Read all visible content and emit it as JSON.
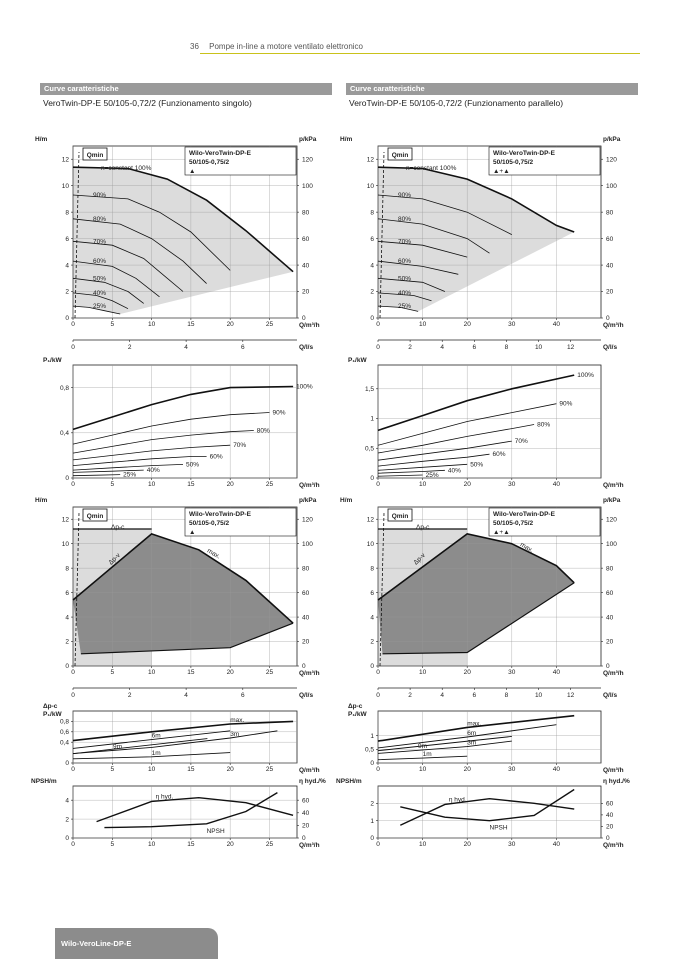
{
  "header": {
    "page_number": "36",
    "title": "Pompe in-line a motore ventilato elettronico"
  },
  "left": {
    "section_label": "Curve caratteristiche",
    "subtitle": "VeroTwin-DP-E 50/105-0,72/2 (Funzionamento singolo)",
    "model_label_1": "Wilo-VeroTwin-DP-E",
    "model_label_2": "50/105-0,75/2",
    "mode_symbol": "▲"
  },
  "right": {
    "section_label": "Curve caratteristiche",
    "subtitle": "VeroTwin-DP-E 50/105-0,72/2 (Funzionamento parallelo)",
    "model_label_1": "Wilo-VeroTwin-DP-E",
    "model_label_2": "50/105-0,75/2",
    "mode_symbol": "▲+▲"
  },
  "footer": {
    "tab_label": "Wilo-VeroLine-DP-E"
  },
  "labels": {
    "qmin": "Qmin",
    "n_constant": "n=constant 100%",
    "h_m": "H/m",
    "p_kpa": "p/kPa",
    "q_m3h": "Q/m³/h",
    "q_ls": "Q/l/s",
    "p1_kw": "P₁/kW",
    "dpc": "Δp-c",
    "dpv": "Δp-v",
    "max": "max.",
    "dpc_p1_1": "Δp-c",
    "dpc_p1_2": "P₁/kW",
    "npsh_m": "NPSH/m",
    "eta_hyd_pct": "η hyd./%",
    "eta_hyd": "η hyd.",
    "npsh": "NPSH",
    "pct_100": "100%",
    "pct_90": "90%",
    "pct_80": "80%",
    "pct_70": "70%",
    "pct_60": "60%",
    "pct_50": "50%",
    "pct_40": "40%",
    "pct_25": "25%",
    "m1": "1m",
    "m3": "3m",
    "m6": "6m",
    "m9": "9m"
  },
  "chart_data": [
    {
      "type": "line",
      "id": "L-HQ",
      "xlabel": "Q/m³/h",
      "ylabel": "H/m",
      "y2label": "p/kPa",
      "xlim": [
        0,
        28.5
      ],
      "ylim": [
        0,
        13
      ],
      "x_ticks": [
        0,
        5,
        10,
        15,
        20,
        25
      ],
      "y_ticks": [
        0,
        2,
        4,
        6,
        8,
        10,
        12
      ],
      "y2_ticks": [
        0,
        20,
        40,
        60,
        80,
        100,
        120
      ],
      "series": [
        {
          "name": "100%",
          "x": [
            0,
            7,
            12,
            17,
            22,
            28
          ],
          "y": [
            11.4,
            11.3,
            10.5,
            8.9,
            6.6,
            3.5
          ]
        },
        {
          "name": "90%",
          "x": [
            0,
            7,
            11,
            15,
            20
          ],
          "y": [
            9.3,
            9.0,
            8.0,
            6.5,
            3.6
          ]
        },
        {
          "name": "80%",
          "x": [
            0,
            6,
            10,
            14,
            17
          ],
          "y": [
            7.5,
            7.1,
            6.0,
            4.3,
            2.6
          ]
        },
        {
          "name": "70%",
          "x": [
            0,
            5,
            9,
            12,
            14
          ],
          "y": [
            5.8,
            5.5,
            4.5,
            3.0,
            2.0
          ]
        },
        {
          "name": "60%",
          "x": [
            0,
            5,
            8,
            11
          ],
          "y": [
            4.3,
            3.9,
            3.0,
            1.6
          ]
        },
        {
          "name": "50%",
          "x": [
            0,
            4,
            7,
            9
          ],
          "y": [
            3.0,
            2.7,
            2.0,
            1.1
          ]
        },
        {
          "name": "40%",
          "x": [
            0,
            3,
            5,
            7
          ],
          "y": [
            1.9,
            1.7,
            1.3,
            0.7
          ]
        },
        {
          "name": "25%",
          "x": [
            0,
            2,
            4,
            6
          ],
          "y": [
            0.9,
            0.8,
            0.55,
            0.3
          ]
        }
      ]
    },
    {
      "type": "line",
      "id": "L-P1",
      "xlabel": "Q/m³/h",
      "ylabel": "P₁/kW",
      "xlim": [
        0,
        28.5
      ],
      "ylim": [
        0,
        1.0
      ],
      "x_ticks": [
        0,
        5,
        10,
        15,
        20,
        25
      ],
      "y_ticks": [
        0,
        0.4,
        0.8
      ],
      "series": [
        {
          "name": "100%",
          "x": [
            0,
            5,
            10,
            15,
            20,
            28
          ],
          "y": [
            0.43,
            0.54,
            0.65,
            0.74,
            0.8,
            0.81
          ]
        },
        {
          "name": "90%",
          "x": [
            0,
            5,
            10,
            15,
            20,
            25
          ],
          "y": [
            0.3,
            0.38,
            0.46,
            0.52,
            0.56,
            0.58
          ]
        },
        {
          "name": "80%",
          "x": [
            0,
            5,
            10,
            15,
            20,
            23
          ],
          "y": [
            0.22,
            0.28,
            0.34,
            0.38,
            0.41,
            0.42
          ]
        },
        {
          "name": "70%",
          "x": [
            0,
            5,
            10,
            15,
            20
          ],
          "y": [
            0.16,
            0.2,
            0.24,
            0.27,
            0.29
          ]
        },
        {
          "name": "60%",
          "x": [
            0,
            5,
            10,
            15,
            17
          ],
          "y": [
            0.11,
            0.14,
            0.17,
            0.19,
            0.19
          ]
        },
        {
          "name": "50%",
          "x": [
            0,
            5,
            10,
            14
          ],
          "y": [
            0.07,
            0.09,
            0.11,
            0.12
          ]
        },
        {
          "name": "40%",
          "x": [
            0,
            5,
            9
          ],
          "y": [
            0.05,
            0.06,
            0.07
          ]
        },
        {
          "name": "25%",
          "x": [
            0,
            3,
            6
          ],
          "y": [
            0.02,
            0.025,
            0.03
          ]
        }
      ]
    },
    {
      "type": "area",
      "id": "L-HQ-range",
      "xlabel": "Q/m³/h",
      "ylabel": "H/m",
      "y2label": "p/kPa",
      "xlim": [
        0,
        28.5
      ],
      "ylim": [
        0,
        13
      ],
      "x_ticks": [
        0,
        5,
        10,
        15,
        20,
        25
      ],
      "y_ticks": [
        0,
        2,
        4,
        6,
        8,
        10,
        12
      ],
      "y2_ticks": [
        0,
        20,
        40,
        60,
        80,
        100,
        120
      ],
      "series": [
        {
          "name": "max.",
          "x": [
            0,
            10,
            16,
            22,
            28
          ],
          "y": [
            5.4,
            10.8,
            9.5,
            7.0,
            3.5
          ]
        },
        {
          "name": "Δp-c",
          "x": [
            0,
            10
          ],
          "y": [
            11.2,
            11.2
          ]
        },
        {
          "name": "min",
          "x": [
            1,
            20,
            28
          ],
          "y": [
            1.0,
            1.5,
            3.5
          ]
        }
      ]
    },
    {
      "type": "line",
      "id": "L-dpc",
      "xlabel": "Q/m³/h",
      "ylabel": "Δp-c P₁/kW",
      "xlim": [
        0,
        28.5
      ],
      "ylim": [
        0,
        1.0
      ],
      "x_ticks": [
        0,
        5,
        10,
        15,
        20,
        25
      ],
      "y_ticks": [
        0,
        0.4,
        0.6,
        0.8
      ],
      "series": [
        {
          "name": "max.",
          "x": [
            0,
            10,
            20,
            28
          ],
          "y": [
            0.43,
            0.6,
            0.75,
            0.8
          ]
        },
        {
          "name": "6m",
          "x": [
            0,
            10,
            20
          ],
          "y": [
            0.28,
            0.45,
            0.62
          ]
        },
        {
          "name": "3m",
          "x": [
            0,
            10,
            20,
            26
          ],
          "y": [
            0.18,
            0.3,
            0.48,
            0.62
          ]
        },
        {
          "name": "1m",
          "x": [
            0,
            10,
            20
          ],
          "y": [
            0.08,
            0.12,
            0.2
          ]
        }
      ]
    },
    {
      "type": "line",
      "id": "L-npsh",
      "xlabel": "Q/m³/h",
      "ylabel": "NPSH/m",
      "y2label": "η hyd./%",
      "xlim": [
        0,
        28.5
      ],
      "ylim": [
        0,
        5.5
      ],
      "x_ticks": [
        0,
        5,
        10,
        15,
        20,
        25
      ],
      "y_ticks": [
        0,
        2,
        4
      ],
      "y2_ticks": [
        0,
        20,
        40,
        60
      ],
      "series": [
        {
          "name": "η hyd.",
          "x": [
            3,
            10,
            16,
            22,
            28
          ],
          "y": [
            26,
            58,
            64,
            56,
            36
          ]
        },
        {
          "name": "NPSH",
          "x": [
            4,
            10,
            17,
            22,
            26
          ],
          "y": [
            1.1,
            1.2,
            1.5,
            2.8,
            4.8
          ]
        }
      ]
    },
    {
      "type": "line",
      "id": "R-HQ",
      "xlabel": "Q/m³/h",
      "ylabel": "H/m",
      "y2label": "p/kPa",
      "xlim": [
        0,
        50
      ],
      "ylim": [
        0,
        13
      ],
      "x_ticks": [
        0,
        10,
        20,
        30,
        40
      ],
      "y_ticks": [
        0,
        2,
        4,
        6,
        8,
        10,
        12
      ],
      "y2_ticks": [
        0,
        20,
        40,
        60,
        80,
        100,
        120
      ],
      "series": [
        {
          "name": "100%",
          "x": [
            0,
            10,
            20,
            30,
            40,
            44
          ],
          "y": [
            11.4,
            11.3,
            10.5,
            9.0,
            7.0,
            6.5
          ]
        },
        {
          "name": "90%",
          "x": [
            0,
            10,
            20,
            30
          ],
          "y": [
            9.3,
            9.0,
            8.0,
            6.3
          ]
        },
        {
          "name": "80%",
          "x": [
            0,
            10,
            20,
            25
          ],
          "y": [
            7.5,
            7.1,
            6.0,
            4.9
          ]
        },
        {
          "name": "70%",
          "x": [
            0,
            10,
            20
          ],
          "y": [
            5.8,
            5.5,
            4.6
          ]
        },
        {
          "name": "60%",
          "x": [
            0,
            10,
            18
          ],
          "y": [
            4.3,
            3.9,
            3.3
          ]
        },
        {
          "name": "50%",
          "x": [
            0,
            10,
            15
          ],
          "y": [
            3.0,
            2.7,
            2.0
          ]
        },
        {
          "name": "40%",
          "x": [
            0,
            8,
            12
          ],
          "y": [
            1.9,
            1.7,
            1.3
          ]
        },
        {
          "name": "25%",
          "x": [
            0,
            5,
            9
          ],
          "y": [
            0.9,
            0.8,
            0.5
          ]
        }
      ]
    },
    {
      "type": "line",
      "id": "R-P1",
      "xlabel": "Q/m³/h",
      "ylabel": "P₁/kW",
      "xlim": [
        0,
        50
      ],
      "ylim": [
        0,
        1.9
      ],
      "x_ticks": [
        0,
        10,
        20,
        30,
        40
      ],
      "y_ticks": [
        0,
        0.5,
        1.0,
        1.5
      ],
      "series": [
        {
          "name": "100%",
          "x": [
            0,
            10,
            20,
            30,
            44
          ],
          "y": [
            0.8,
            1.05,
            1.3,
            1.5,
            1.73
          ]
        },
        {
          "name": "90%",
          "x": [
            0,
            10,
            20,
            30,
            40
          ],
          "y": [
            0.55,
            0.75,
            0.95,
            1.1,
            1.25
          ]
        },
        {
          "name": "80%",
          "x": [
            0,
            10,
            20,
            30,
            35
          ],
          "y": [
            0.42,
            0.55,
            0.7,
            0.83,
            0.9
          ]
        },
        {
          "name": "70%",
          "x": [
            0,
            10,
            20,
            30
          ],
          "y": [
            0.3,
            0.4,
            0.5,
            0.62
          ]
        },
        {
          "name": "60%",
          "x": [
            0,
            10,
            20,
            25
          ],
          "y": [
            0.2,
            0.28,
            0.35,
            0.4
          ]
        },
        {
          "name": "50%",
          "x": [
            0,
            10,
            20
          ],
          "y": [
            0.13,
            0.18,
            0.23
          ]
        },
        {
          "name": "40%",
          "x": [
            0,
            10,
            15
          ],
          "y": [
            0.08,
            0.11,
            0.13
          ]
        },
        {
          "name": "25%",
          "x": [
            0,
            5,
            10
          ],
          "y": [
            0.03,
            0.04,
            0.05
          ]
        }
      ]
    },
    {
      "type": "area",
      "id": "R-HQ-range",
      "xlabel": "Q/m³/h",
      "ylabel": "H/m",
      "y2label": "p/kPa",
      "xlim": [
        0,
        50
      ],
      "ylim": [
        0,
        13
      ],
      "x_ticks": [
        0,
        10,
        20,
        30,
        40
      ],
      "y_ticks": [
        0,
        2,
        4,
        6,
        8,
        10,
        12
      ],
      "y2_ticks": [
        0,
        20,
        40,
        60,
        80,
        100,
        120
      ],
      "series": [
        {
          "name": "max.",
          "x": [
            0,
            20,
            30,
            40,
            44
          ],
          "y": [
            5.4,
            10.8,
            10.0,
            8.2,
            6.8
          ]
        },
        {
          "name": "Δp-c",
          "x": [
            0,
            20
          ],
          "y": [
            11.2,
            11.2
          ]
        },
        {
          "name": "min",
          "x": [
            1,
            20,
            44
          ],
          "y": [
            1.0,
            1.1,
            6.8
          ]
        }
      ]
    },
    {
      "type": "line",
      "id": "R-dpc",
      "xlabel": "Q/m³/h",
      "ylabel": "Δp-c P₁/kW",
      "xlim": [
        0,
        50
      ],
      "ylim": [
        0,
        1.9
      ],
      "x_ticks": [
        0,
        10,
        20,
        30,
        40
      ],
      "y_ticks": [
        0,
        0.5,
        1.0
      ],
      "series": [
        {
          "name": "max.",
          "x": [
            0,
            20,
            44
          ],
          "y": [
            0.8,
            1.3,
            1.73
          ]
        },
        {
          "name": "6m",
          "x": [
            0,
            20,
            40
          ],
          "y": [
            0.55,
            0.95,
            1.4
          ]
        },
        {
          "name": "3m",
          "x": [
            0,
            20,
            30
          ],
          "y": [
            0.35,
            0.6,
            0.8
          ]
        },
        {
          "name": "1m",
          "x": [
            0,
            10,
            20
          ],
          "y": [
            0.12,
            0.18,
            0.25
          ]
        }
      ]
    },
    {
      "type": "line",
      "id": "R-npsh",
      "xlabel": "Q/m³/h",
      "ylabel": "NPSH/m",
      "y2label": "η hyd./%",
      "xlim": [
        0,
        50
      ],
      "ylim": [
        0,
        3
      ],
      "x_ticks": [
        0,
        10,
        20,
        30,
        40
      ],
      "y_ticks": [
        0,
        1,
        2
      ],
      "y2_ticks": [
        0,
        20,
        40,
        60
      ],
      "series": [
        {
          "name": "η hyd.",
          "x": [
            5,
            15,
            25,
            35,
            44
          ],
          "y": [
            22,
            58,
            68,
            60,
            50
          ]
        },
        {
          "name": "NPSH",
          "x": [
            5,
            15,
            25,
            35,
            44
          ],
          "y": [
            1.8,
            1.2,
            1.0,
            1.3,
            2.8
          ]
        }
      ]
    }
  ]
}
